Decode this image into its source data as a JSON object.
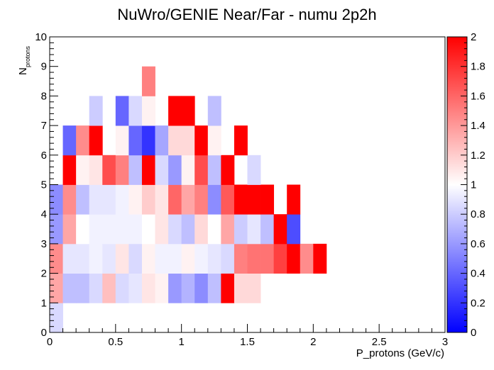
{
  "chart_data": {
    "type": "heatmap",
    "title": "NuWro/GENIE Near/Far - numu 2p2h",
    "xlabel": "P_protons (GeV/c)",
    "ylabel_main": "N",
    "ylabel_sub": "protons",
    "xlim": [
      0,
      3
    ],
    "ylim": [
      0,
      10
    ],
    "zlim": [
      0,
      2
    ],
    "x_bin_width": 0.1,
    "y_bin_width": 1,
    "x_ticks": [
      "0",
      "0.5",
      "1",
      "1.5",
      "2",
      "2.5",
      "3"
    ],
    "x_tick_values": [
      0,
      0.5,
      1,
      1.5,
      2,
      2.5,
      3
    ],
    "y_ticks": [
      "0",
      "1",
      "2",
      "3",
      "4",
      "5",
      "6",
      "7",
      "8",
      "9",
      "10"
    ],
    "y_tick_values": [
      0,
      1,
      2,
      3,
      4,
      5,
      6,
      7,
      8,
      9,
      10
    ],
    "z_ticks": [
      "0",
      "0.2",
      "0.4",
      "0.6",
      "0.8",
      "1",
      "1.2",
      "1.4",
      "1.6",
      "1.8",
      "2"
    ],
    "z_tick_values": [
      0,
      0.2,
      0.4,
      0.6,
      0.8,
      1.0,
      1.2,
      1.4,
      1.6,
      1.8,
      2.0
    ],
    "palette": [
      "#0000ff",
      "#ffffff",
      "#ff0000"
    ],
    "cells": [
      [
        0,
        0,
        0.85
      ],
      [
        0,
        1,
        1.35
      ],
      [
        1,
        1,
        0.75
      ],
      [
        2,
        1,
        0.75
      ],
      [
        3,
        1,
        0.85
      ],
      [
        4,
        1,
        1.25
      ],
      [
        5,
        1,
        0.85
      ],
      [
        6,
        1,
        0.9
      ],
      [
        7,
        1,
        1.1
      ],
      [
        8,
        1,
        1.05
      ],
      [
        9,
        1,
        0.6
      ],
      [
        10,
        1,
        0.7
      ],
      [
        11,
        1,
        0.55
      ],
      [
        12,
        1,
        0.75
      ],
      [
        13,
        1,
        2.0
      ],
      [
        14,
        1,
        1.15
      ],
      [
        15,
        1,
        1.15
      ],
      [
        0,
        2,
        1.45
      ],
      [
        1,
        2,
        0.9
      ],
      [
        2,
        2,
        0.9
      ],
      [
        3,
        2,
        0.95
      ],
      [
        4,
        2,
        0.9
      ],
      [
        5,
        2,
        1.1
      ],
      [
        6,
        2,
        0.85
      ],
      [
        7,
        2,
        1.05
      ],
      [
        8,
        2,
        0.95
      ],
      [
        9,
        2,
        0.95
      ],
      [
        10,
        2,
        1.05
      ],
      [
        11,
        2,
        0.95
      ],
      [
        12,
        2,
        0.9
      ],
      [
        13,
        2,
        0.85
      ],
      [
        14,
        2,
        1.5
      ],
      [
        15,
        2,
        1.55
      ],
      [
        16,
        2,
        1.55
      ],
      [
        17,
        2,
        1.75
      ],
      [
        18,
        2,
        2.0
      ],
      [
        19,
        2,
        1.45
      ],
      [
        20,
        2,
        2.0
      ],
      [
        0,
        3,
        0.6
      ],
      [
        1,
        3,
        1.35
      ],
      [
        2,
        3,
        1.0
      ],
      [
        3,
        3,
        0.95
      ],
      [
        4,
        3,
        0.95
      ],
      [
        5,
        3,
        0.95
      ],
      [
        6,
        3,
        0.95
      ],
      [
        7,
        3,
        1.0
      ],
      [
        8,
        3,
        1.1
      ],
      [
        9,
        3,
        0.85
      ],
      [
        10,
        3,
        0.75
      ],
      [
        11,
        3,
        1.15
      ],
      [
        12,
        3,
        1.0
      ],
      [
        13,
        3,
        1.35
      ],
      [
        14,
        3,
        0.8
      ],
      [
        15,
        3,
        0.9
      ],
      [
        16,
        3,
        0.75
      ],
      [
        17,
        3,
        2.0
      ],
      [
        18,
        3,
        0.3
      ],
      [
        0,
        4,
        0.55
      ],
      [
        1,
        4,
        1.45
      ],
      [
        2,
        4,
        0.75
      ],
      [
        3,
        4,
        0.9
      ],
      [
        4,
        4,
        0.9
      ],
      [
        5,
        4,
        0.95
      ],
      [
        6,
        4,
        1.05
      ],
      [
        7,
        4,
        1.2
      ],
      [
        8,
        4,
        1.1
      ],
      [
        9,
        4,
        1.6
      ],
      [
        10,
        4,
        1.35
      ],
      [
        11,
        4,
        1.5
      ],
      [
        12,
        4,
        0.55
      ],
      [
        13,
        4,
        1.65
      ],
      [
        14,
        4,
        2.0
      ],
      [
        15,
        4,
        2.0
      ],
      [
        16,
        4,
        2.0
      ],
      [
        18,
        4,
        2.0
      ],
      [
        1,
        5,
        2.0
      ],
      [
        2,
        5,
        1.05
      ],
      [
        3,
        5,
        1.1
      ],
      [
        4,
        5,
        1.7
      ],
      [
        5,
        5,
        1.5
      ],
      [
        6,
        5,
        0.75
      ],
      [
        7,
        5,
        2.0
      ],
      [
        8,
        5,
        0.85
      ],
      [
        9,
        5,
        0.6
      ],
      [
        10,
        5,
        1.05
      ],
      [
        11,
        5,
        1.7
      ],
      [
        12,
        5,
        0.75
      ],
      [
        13,
        5,
        2.0
      ],
      [
        15,
        5,
        0.85
      ],
      [
        1,
        6,
        0.4
      ],
      [
        2,
        6,
        1.45
      ],
      [
        3,
        6,
        2.0
      ],
      [
        5,
        6,
        1.05
      ],
      [
        6,
        6,
        0.4
      ],
      [
        7,
        6,
        0.2
      ],
      [
        8,
        6,
        0.65
      ],
      [
        9,
        6,
        1.15
      ],
      [
        10,
        6,
        1.15
      ],
      [
        11,
        6,
        2.0
      ],
      [
        12,
        6,
        1.05
      ],
      [
        14,
        6,
        2.0
      ],
      [
        3,
        7,
        0.8
      ],
      [
        5,
        7,
        0.4
      ],
      [
        6,
        7,
        0.85
      ],
      [
        7,
        7,
        1.05
      ],
      [
        9,
        7,
        2.0
      ],
      [
        10,
        7,
        2.0
      ],
      [
        12,
        7,
        0.75
      ],
      [
        7,
        8,
        1.5
      ]
    ]
  }
}
